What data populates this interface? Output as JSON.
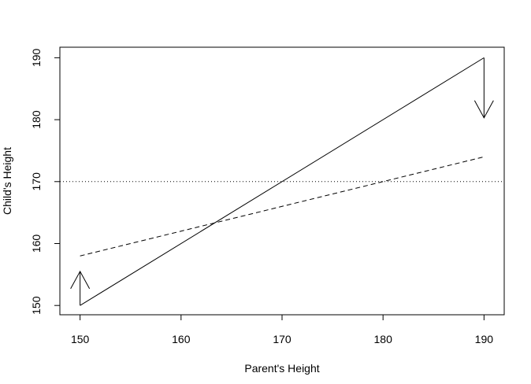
{
  "chart_data": {
    "type": "line",
    "title": "",
    "xlabel": "Parent's Height",
    "ylabel": "Child's Height",
    "xlim": [
      148,
      192
    ],
    "ylim": [
      148.5,
      191.7
    ],
    "x_ticks": [
      150,
      160,
      170,
      180,
      190
    ],
    "y_ticks": [
      150,
      160,
      170,
      180,
      190
    ],
    "grid": false,
    "series": [
      {
        "style": "solid",
        "x": [
          150,
          190
        ],
        "y": [
          150,
          190
        ]
      },
      {
        "style": "dashed",
        "x": [
          150,
          190
        ],
        "y": [
          158,
          174
        ]
      }
    ],
    "hlines": [
      {
        "style": "dotted",
        "y": 170
      }
    ],
    "arrows": [
      {
        "x": 150,
        "y0": 150,
        "y1": 155.5
      },
      {
        "x": 190,
        "y0": 190,
        "y1": 180.3
      }
    ],
    "colors": {
      "ink": "#000000",
      "background": "#ffffff"
    }
  }
}
